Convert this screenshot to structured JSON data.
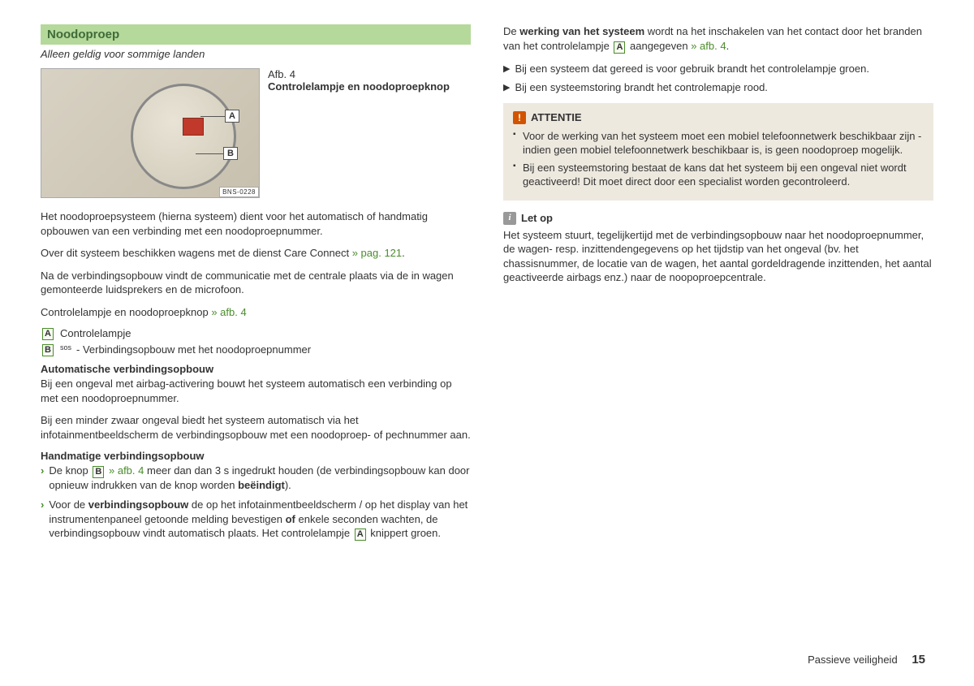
{
  "left": {
    "heading": "Noodoproep",
    "subtitle": "Alleen geldig voor sommige landen",
    "figure": {
      "number": "Afb. 4",
      "title": "Controlelampje en noodoproepknop",
      "calloutA": "A",
      "calloutB": "B",
      "code": "BNS-0228"
    },
    "p1": "Het noodoproepsysteem (hierna systeem) dient voor het automatisch of handmatig opbouwen van een verbinding met een noodoproepnummer.",
    "p2a": "Over dit systeem beschikken wagens met de dienst Care Connect ",
    "p2link": "» pag. 121",
    "p2b": ".",
    "p3": "Na de verbindingsopbouw vindt de communicatie met de centrale plaats via de in wagen gemonteerde luidsprekers en de microfoon.",
    "p4a": "Controlelampje en noodoproepknop ",
    "p4link": "» afb. 4",
    "legendA_box": "A",
    "legendA_text": "Controlelampje",
    "legendB_box": "B",
    "legendB_sos": "℡",
    "legendB_text": " - Verbindingsopbouw met het noodoproepnummer",
    "autoHead": "Automatische verbindingsopbouw",
    "autoP": "Bij een ongeval met airbag-activering bouwt het systeem automatisch een verbinding op met een noodoproepnummer.",
    "autoP2": "Bij een minder zwaar ongeval biedt het systeem automatisch via het infotainmentbeeldscherm de verbindingsopbouw met een noodoproep- of pechnummer aan.",
    "manHead": "Handmatige verbindingsopbouw",
    "man1a": "De knop ",
    "man1box": "B",
    "man1link": " » afb. 4",
    "man1b": " meer dan dan 3 s ingedrukt houden (de verbindingsopbouw kan door opnieuw indrukken van de knop worden ",
    "man1c": "beëindigt",
    "man1d": ").",
    "man2a": "Voor de ",
    "man2b": "verbindingsopbouw",
    "man2c": " de op het infotainmentbeeldscherm / op het display van het instrumentenpaneel getoonde melding bevestigen ",
    "man2d": "of",
    "man2e": " enkele seconden wachten, de verbindingsopbouw vindt automatisch plaats. Het controlelampje ",
    "man2box": "A",
    "man2f": " knippert groen."
  },
  "right": {
    "topA": "De ",
    "topB": "werking van het systeem",
    "topC": " wordt na het inschakelen van het contact door het branden van het controlelampje ",
    "topBox": "A",
    "topD": " aangegeven ",
    "topLink": "» afb. 4",
    "topE": ".",
    "tri1": "Bij een systeem dat gereed is voor gebruik brandt het controlelampje groen.",
    "tri2": "Bij een systeemstoring brandt het controlemapje rood.",
    "warnTitle": "ATTENTIE",
    "warn1": "Voor de werking van het systeem moet een mobiel telefoonnetwerk beschikbaar zijn - indien geen mobiel telefoonnetwerk beschikbaar is, is geen noodoproep mogelijk.",
    "warn2": "Bij een systeemstoring bestaat de kans dat het systeem bij een ongeval niet wordt geactiveerd! Dit moet direct door een specialist worden gecontroleerd.",
    "noteTitle": "Let op",
    "noteBody": "Het systeem stuurt, tegelijkertijd met de verbindingsopbouw naar het noodoproepnummer, de wagen- resp. inzittendengegevens op het tijdstip van het ongeval (bv. het chassisnummer, de locatie van de wagen, het aantal gordeldragende inzittenden, het aantal geactiveerde airbags enz.) naar de noopoproepcentrale."
  },
  "footer": {
    "section": "Passieve veiligheid",
    "page": "15"
  }
}
